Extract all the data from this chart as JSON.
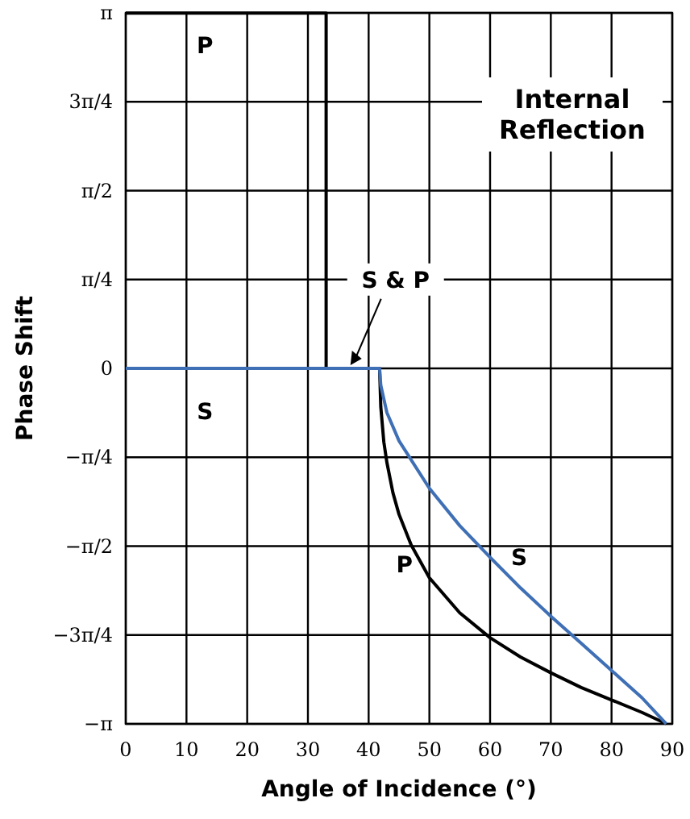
{
  "chart_data": {
    "type": "line",
    "xlabel": "Angle of Incidence (°)",
    "ylabel": "Phase Shift",
    "xlim": [
      0,
      90
    ],
    "xticks": [
      0,
      10,
      20,
      30,
      40,
      50,
      60,
      70,
      80,
      90
    ],
    "ylim": [
      -3.1416,
      3.1416
    ],
    "yticks": [
      {
        "value": -3.1416,
        "label": "−π"
      },
      {
        "value": -2.3562,
        "label": "−3π/4"
      },
      {
        "value": -1.5708,
        "label": "−π/2"
      },
      {
        "value": -0.7854,
        "label": "−π/4"
      },
      {
        "value": 0,
        "label": "0"
      },
      {
        "value": 0.7854,
        "label": "π/4"
      },
      {
        "value": 1.5708,
        "label": "π/2"
      },
      {
        "value": 2.3562,
        "label": "3π/4"
      },
      {
        "value": 3.1416,
        "label": "π"
      }
    ],
    "grid": true,
    "line_style": "solid",
    "marker": "none",
    "series": [
      {
        "name": "P",
        "color": "#000000",
        "x": [
          0,
          33,
          33,
          41.8,
          42,
          42.5,
          43,
          44,
          45,
          47,
          50,
          55,
          60,
          65,
          70,
          75,
          80,
          85,
          89
        ],
        "values": [
          3.14,
          3.14,
          0,
          0,
          -0.34,
          -0.65,
          -0.83,
          -1.1,
          -1.29,
          -1.56,
          -1.85,
          -2.16,
          -2.38,
          -2.55,
          -2.69,
          -2.82,
          -2.93,
          -3.04,
          -3.14
        ]
      },
      {
        "name": "S",
        "color": "#3f6fb5",
        "x": [
          0,
          41.8,
          42,
          43,
          45,
          50,
          55,
          60,
          65,
          70,
          75,
          80,
          85,
          89
        ],
        "values": [
          0,
          0,
          -0.15,
          -0.39,
          -0.64,
          -1.06,
          -1.39,
          -1.67,
          -1.94,
          -2.19,
          -2.43,
          -2.67,
          -2.91,
          -3.14
        ]
      }
    ],
    "annotations": [
      "Internal Reflection",
      {
        "text": "S & P",
        "x": 37,
        "y": 0
      }
    ]
  }
}
